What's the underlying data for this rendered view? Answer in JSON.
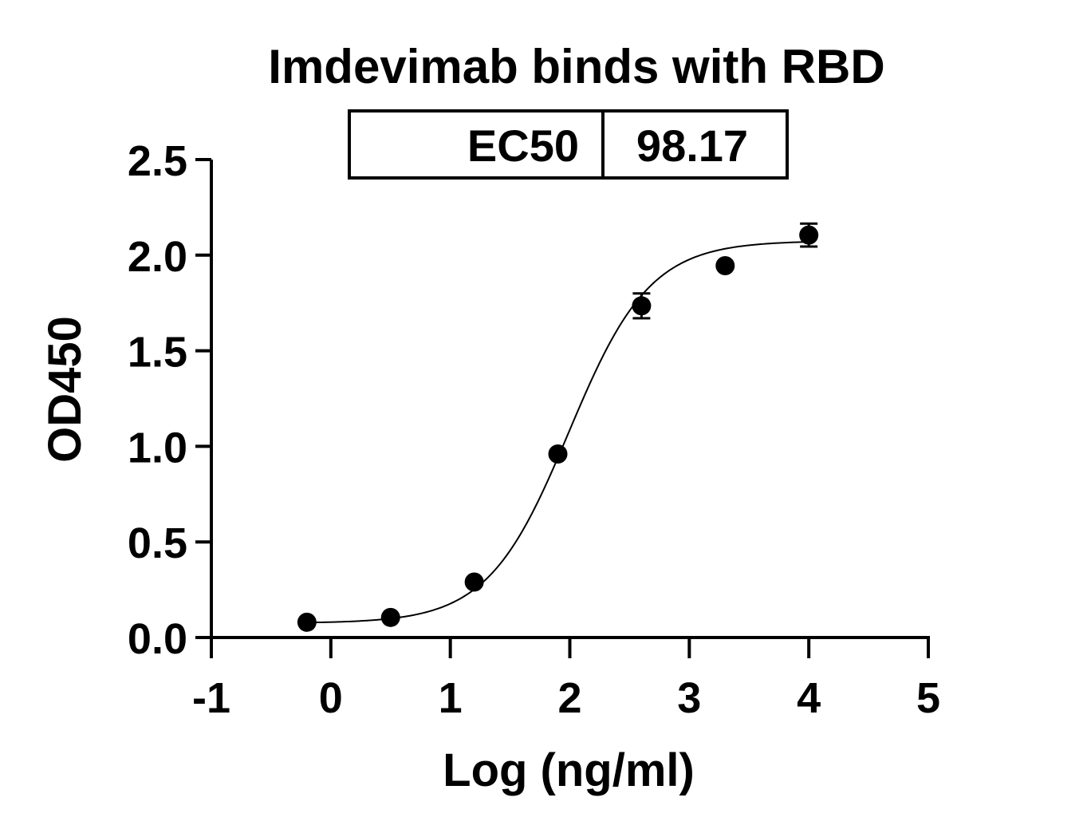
{
  "chart_data": {
    "type": "scatter",
    "title": "Imdevimab binds with RBD",
    "xlabel": "Log (ng/ml)",
    "ylabel": "OD450",
    "xlim": [
      -1,
      5
    ],
    "ylim": [
      0,
      2.5
    ],
    "x_ticks": [
      "-1",
      "0",
      "1",
      "2",
      "3",
      "4",
      "5"
    ],
    "y_ticks": [
      "0.0",
      "0.5",
      "1.0",
      "1.5",
      "2.0",
      "2.5"
    ],
    "grid": false,
    "legend": "none",
    "ec50_table": {
      "label": "EC50",
      "value": "98.17"
    },
    "series": [
      {
        "points": [
          {
            "x": -0.2,
            "y": 0.08,
            "err": 0.0
          },
          {
            "x": 0.5,
            "y": 0.105,
            "err": 0.0
          },
          {
            "x": 1.2,
            "y": 0.29,
            "err": 0.0
          },
          {
            "x": 1.9,
            "y": 0.96,
            "err": 0.0
          },
          {
            "x": 2.6,
            "y": 1.735,
            "err": 0.065
          },
          {
            "x": 3.3,
            "y": 1.945,
            "err": 0.0
          },
          {
            "x": 4.0,
            "y": 2.105,
            "err": 0.06
          }
        ],
        "fit": {
          "model": "4PL",
          "bottom": 0.075,
          "top": 2.075,
          "log_ec50": 1.992,
          "hill_slope": 1.28
        },
        "color": "#000000"
      }
    ]
  }
}
